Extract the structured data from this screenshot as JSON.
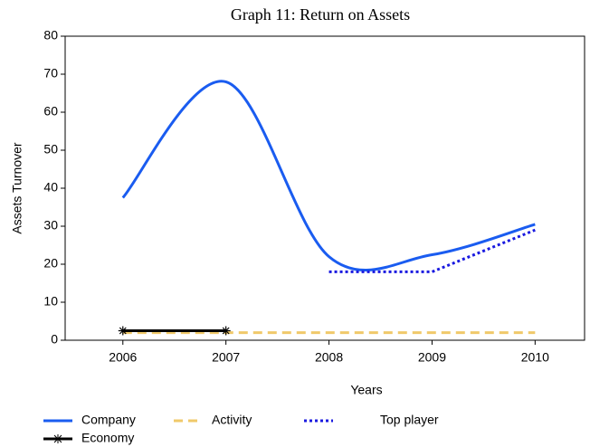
{
  "chart_data": {
    "type": "line",
    "title": "Graph 11: Return on Assets",
    "x_label": "Years",
    "y_label": "Assets Turnover",
    "x": [
      2006,
      2007,
      2008,
      2009,
      2010
    ],
    "xlim": [
      2005.44,
      2010.48
    ],
    "xticks": [
      2006,
      2007,
      2008,
      2009,
      2010
    ],
    "ylim": [
      0,
      80
    ],
    "yticks": [
      0,
      10,
      20,
      30,
      40,
      50,
      60,
      70,
      80
    ],
    "legend": "bottom",
    "series": [
      {
        "name": "Company",
        "color": "#1a5cf0",
        "style": "solid",
        "smooth": true,
        "values": [
          37.5,
          68,
          22,
          22.5,
          30.5
        ]
      },
      {
        "name": "Activity",
        "color": "#f0c96a",
        "style": "dashed",
        "values": [
          2,
          2,
          2,
          2,
          2
        ]
      },
      {
        "name": "Top player",
        "color": "#1a1ae0",
        "style": "dotted",
        "values": [
          null,
          null,
          18,
          18,
          29
        ]
      },
      {
        "name": "Economy",
        "color": "#000000",
        "style": "solid",
        "marker": "asterisk",
        "values": [
          2.5,
          2.5,
          null,
          null,
          null
        ]
      }
    ]
  }
}
